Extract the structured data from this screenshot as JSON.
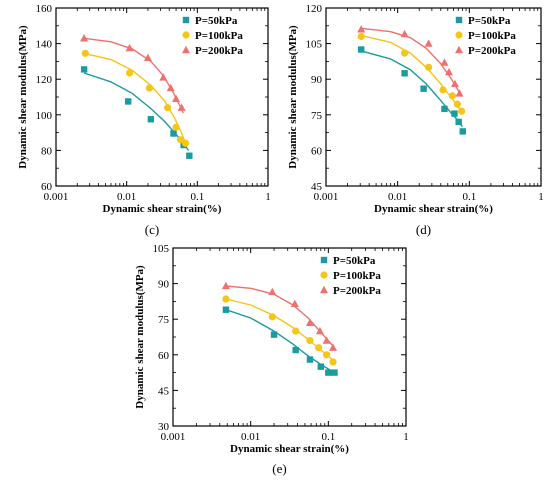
{
  "chart_data": [
    {
      "type": "scatter",
      "panel_label": "(c)",
      "xlabel": "Dynamic shear strain(%)",
      "ylabel": "Dynamic shear modulus(MPa)",
      "xscale": "log",
      "xlim": [
        0.001,
        1
      ],
      "ylim": [
        60,
        160
      ],
      "xticks": [
        0.001,
        0.01,
        0.1,
        1
      ],
      "xtick_labels": [
        "0.001",
        "0.01",
        "0.1",
        "1"
      ],
      "yticks": [
        60,
        80,
        100,
        120,
        140,
        160
      ],
      "legend_position": "top-right",
      "series": [
        {
          "name": "P=50kPa",
          "color": "#1a9ba0",
          "marker": "square",
          "points": [
            [
              0.0025,
              125.5
            ],
            [
              0.0105,
              107.5
            ],
            [
              0.022,
              97.5
            ],
            [
              0.046,
              89.5
            ],
            [
              0.064,
              83
            ],
            [
              0.077,
              77
            ]
          ],
          "fit": [
            [
              0.0025,
              123.5
            ],
            [
              0.006,
              118.5
            ],
            [
              0.012,
              112
            ],
            [
              0.022,
              103.5
            ],
            [
              0.035,
              96
            ],
            [
              0.05,
              89
            ],
            [
              0.065,
              83.5
            ],
            [
              0.075,
              80
            ]
          ]
        },
        {
          "name": "P=100kPa",
          "color": "#f5c518",
          "marker": "circle",
          "points": [
            [
              0.0026,
              134.5
            ],
            [
              0.011,
              123.5
            ],
            [
              0.021,
              115
            ],
            [
              0.038,
              104
            ],
            [
              0.05,
              93
            ],
            [
              0.058,
              86
            ],
            [
              0.068,
              84
            ]
          ],
          "fit": [
            [
              0.0025,
              134.5
            ],
            [
              0.006,
              131
            ],
            [
              0.012,
              125
            ],
            [
              0.022,
              116.5
            ],
            [
              0.035,
              107.5
            ],
            [
              0.048,
              98
            ],
            [
              0.06,
              89.5
            ],
            [
              0.07,
              83
            ]
          ]
        },
        {
          "name": "P=200kPa",
          "color": "#f07070",
          "marker": "triangle",
          "points": [
            [
              0.0025,
              143
            ],
            [
              0.011,
              137.5
            ],
            [
              0.02,
              132
            ],
            [
              0.033,
              121
            ],
            [
              0.042,
              115
            ],
            [
              0.05,
              109
            ],
            [
              0.06,
              104
            ]
          ],
          "fit": [
            [
              0.0025,
              143
            ],
            [
              0.006,
              141
            ],
            [
              0.012,
              137
            ],
            [
              0.022,
              130
            ],
            [
              0.033,
              122
            ],
            [
              0.045,
              113
            ],
            [
              0.055,
              106
            ],
            [
              0.063,
              101
            ]
          ]
        }
      ]
    },
    {
      "type": "scatter",
      "panel_label": "(d)",
      "xlabel": "Dynamic shear strain(%)",
      "ylabel": "Dynamic shear modulus(MPa)",
      "xscale": "log",
      "xlim": [
        0.001,
        1
      ],
      "ylim": [
        45,
        120
      ],
      "xticks": [
        0.001,
        0.01,
        0.1,
        1
      ],
      "xtick_labels": [
        "0.001",
        "0.01",
        "0.1",
        "1"
      ],
      "yticks": [
        45,
        60,
        75,
        90,
        105,
        120
      ],
      "legend_position": "top-right",
      "series": [
        {
          "name": "P=50kPa",
          "color": "#1a9ba0",
          "marker": "square",
          "points": [
            [
              0.0031,
              102.5
            ],
            [
              0.0125,
              92.5
            ],
            [
              0.023,
              86
            ],
            [
              0.045,
              77.5
            ],
            [
              0.062,
              75.5
            ],
            [
              0.071,
              72
            ],
            [
              0.081,
              68
            ]
          ],
          "fit": [
            [
              0.003,
              102
            ],
            [
              0.008,
              98.5
            ],
            [
              0.015,
              94
            ],
            [
              0.025,
              88
            ],
            [
              0.04,
              81
            ],
            [
              0.055,
              76
            ],
            [
              0.07,
              72.5
            ],
            [
              0.08,
              70
            ]
          ]
        },
        {
          "name": "P=100kPa",
          "color": "#f5c518",
          "marker": "circle",
          "points": [
            [
              0.0031,
              108
            ],
            [
              0.0125,
              101
            ],
            [
              0.027,
              95
            ],
            [
              0.043,
              85.5
            ],
            [
              0.058,
              83
            ],
            [
              0.068,
              79.5
            ],
            [
              0.078,
              76.5
            ]
          ],
          "fit": [
            [
              0.003,
              108.5
            ],
            [
              0.008,
              105.5
            ],
            [
              0.015,
              101
            ],
            [
              0.025,
              95
            ],
            [
              0.04,
              88
            ],
            [
              0.055,
              82.5
            ],
            [
              0.068,
              79
            ],
            [
              0.078,
              76
            ]
          ]
        },
        {
          "name": "P=200kPa",
          "color": "#f07070",
          "marker": "triangle",
          "points": [
            [
              0.0031,
              111
            ],
            [
              0.0125,
              109
            ],
            [
              0.027,
              105
            ],
            [
              0.045,
              97
            ],
            [
              0.052,
              93
            ],
            [
              0.063,
              88
            ],
            [
              0.073,
              84
            ]
          ],
          "fit": [
            [
              0.003,
              111.5
            ],
            [
              0.008,
              110
            ],
            [
              0.015,
              107.5
            ],
            [
              0.025,
              103
            ],
            [
              0.04,
              96.5
            ],
            [
              0.055,
              90.5
            ],
            [
              0.068,
              86
            ],
            [
              0.075,
              83.5
            ]
          ]
        }
      ]
    },
    {
      "type": "scatter",
      "panel_label": "(e)",
      "xlabel": "Dynamic shear strain(%)",
      "ylabel": "Dynamic shear modulus(MPa)",
      "xscale": "log",
      "xlim": [
        0.001,
        1
      ],
      "ylim": [
        30,
        105
      ],
      "xticks": [
        0.001,
        0.01,
        0.1,
        1
      ],
      "xtick_labels": [
        "0.001",
        "0.01",
        "0.1",
        "1"
      ],
      "yticks": [
        30,
        45,
        60,
        75,
        90,
        105
      ],
      "legend_position": "top-right",
      "series": [
        {
          "name": "P=50kPa",
          "color": "#1a9ba0",
          "marker": "square",
          "points": [
            [
              0.0048,
              79
            ],
            [
              0.02,
              68.5
            ],
            [
              0.038,
              62
            ],
            [
              0.058,
              58
            ],
            [
              0.08,
              55
            ],
            [
              0.1,
              52.5
            ],
            [
              0.12,
              52.5
            ]
          ],
          "fit": [
            [
              0.0048,
              79
            ],
            [
              0.01,
              75.5
            ],
            [
              0.02,
              70
            ],
            [
              0.035,
              64.5
            ],
            [
              0.055,
              59.5
            ],
            [
              0.08,
              56
            ],
            [
              0.1,
              54
            ],
            [
              0.12,
              52.5
            ]
          ]
        },
        {
          "name": "P=100kPa",
          "color": "#f5c518",
          "marker": "circle",
          "points": [
            [
              0.0048,
              83.5
            ],
            [
              0.019,
              76
            ],
            [
              0.038,
              70
            ],
            [
              0.058,
              66
            ],
            [
              0.075,
              63
            ],
            [
              0.095,
              60
            ],
            [
              0.115,
              57
            ]
          ],
          "fit": [
            [
              0.0048,
              83.5
            ],
            [
              0.01,
              81
            ],
            [
              0.02,
              76.5
            ],
            [
              0.035,
              71.5
            ],
            [
              0.055,
              66.5
            ],
            [
              0.08,
              62
            ],
            [
              0.1,
              59.5
            ],
            [
              0.12,
              57
            ]
          ]
        },
        {
          "name": "P=200kPa",
          "color": "#f07070",
          "marker": "triangle",
          "points": [
            [
              0.0048,
              89
            ],
            [
              0.019,
              86.5
            ],
            [
              0.037,
              81.5
            ],
            [
              0.058,
              73.5
            ],
            [
              0.078,
              70
            ],
            [
              0.095,
              66
            ],
            [
              0.115,
              63
            ]
          ],
          "fit": [
            [
              0.0048,
              89
            ],
            [
              0.01,
              88
            ],
            [
              0.02,
              85.5
            ],
            [
              0.035,
              81
            ],
            [
              0.055,
              75.5
            ],
            [
              0.08,
              69.5
            ],
            [
              0.1,
              66
            ],
            [
              0.12,
              63
            ]
          ]
        }
      ]
    }
  ]
}
